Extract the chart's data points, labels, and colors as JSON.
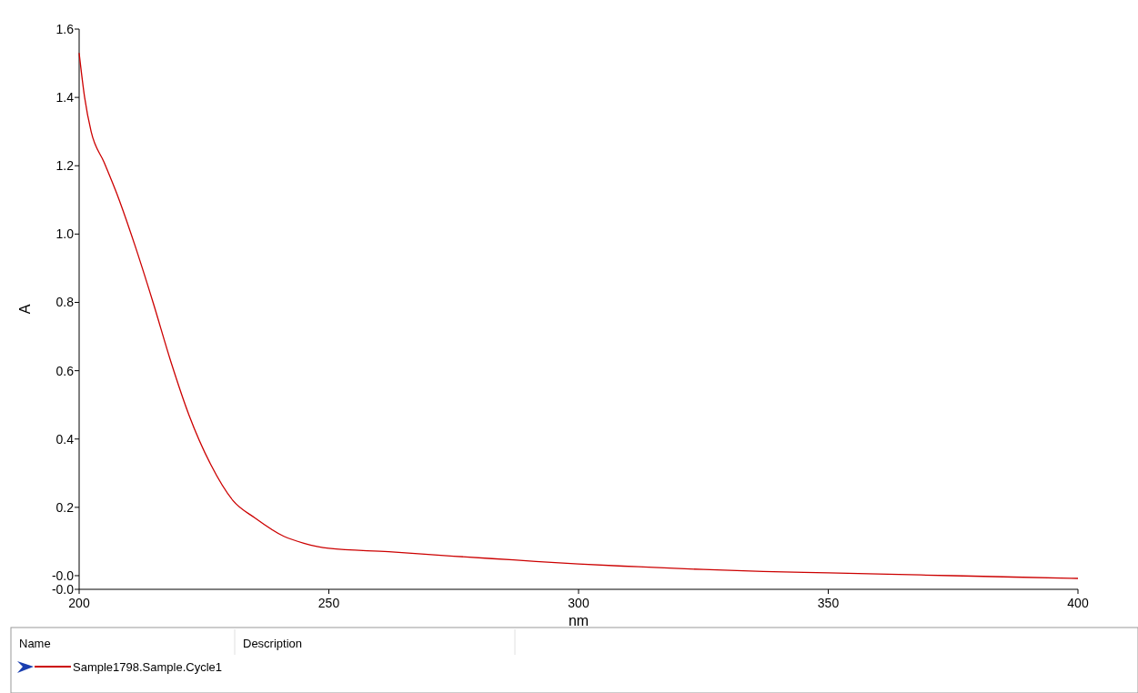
{
  "chart_data": {
    "type": "line",
    "xlabel": "nm",
    "ylabel": "A",
    "legend_title": "Name",
    "annotations": [
      "Description"
    ],
    "xlim": [
      200,
      400
    ],
    "xticks": [
      200,
      250,
      300,
      350,
      400
    ],
    "ylim": [
      -0.04,
      1.6
    ],
    "yticks": [
      {
        "value": -0.04,
        "label": "-0.0"
      },
      {
        "value": 0,
        "label": "-0.0"
      },
      {
        "value": 0.2,
        "label": "0.2"
      },
      {
        "value": 0.4,
        "label": "0.4"
      },
      {
        "value": 0.6,
        "label": "0.6"
      },
      {
        "value": 0.8,
        "label": "0.8"
      },
      {
        "value": 1,
        "label": "1.0"
      },
      {
        "value": 1.2,
        "label": "1.2"
      },
      {
        "value": 1.4,
        "label": "1.4"
      },
      {
        "value": 1.6,
        "label": "1.6"
      }
    ],
    "grid": false,
    "legend": "bottom",
    "marker": "none",
    "line_style": "solid",
    "series": [
      {
        "name": "Sample1798.Sample.Cycle1",
        "color": "#cc0000",
        "x": [
          200,
          201.1,
          202.4,
          205,
          207.5,
          211.1,
          214.8,
          218.4,
          222,
          226.4,
          230.8,
          235.2,
          241,
          245,
          250,
          262,
          275,
          287,
          300,
          312,
          325,
          337,
          350,
          362,
          375,
          387,
          400
        ],
        "values": [
          1.53,
          1.4,
          1.3,
          1.21,
          1.12,
          0.97,
          0.8,
          0.625,
          0.47,
          0.324,
          0.22,
          0.169,
          0.115,
          0.095,
          0.08,
          0.07,
          0.057,
          0.046,
          0.034,
          0.026,
          0.018,
          0.012,
          0.008,
          0.004,
          0.0,
          -0.004,
          -0.008
        ]
      }
    ]
  }
}
